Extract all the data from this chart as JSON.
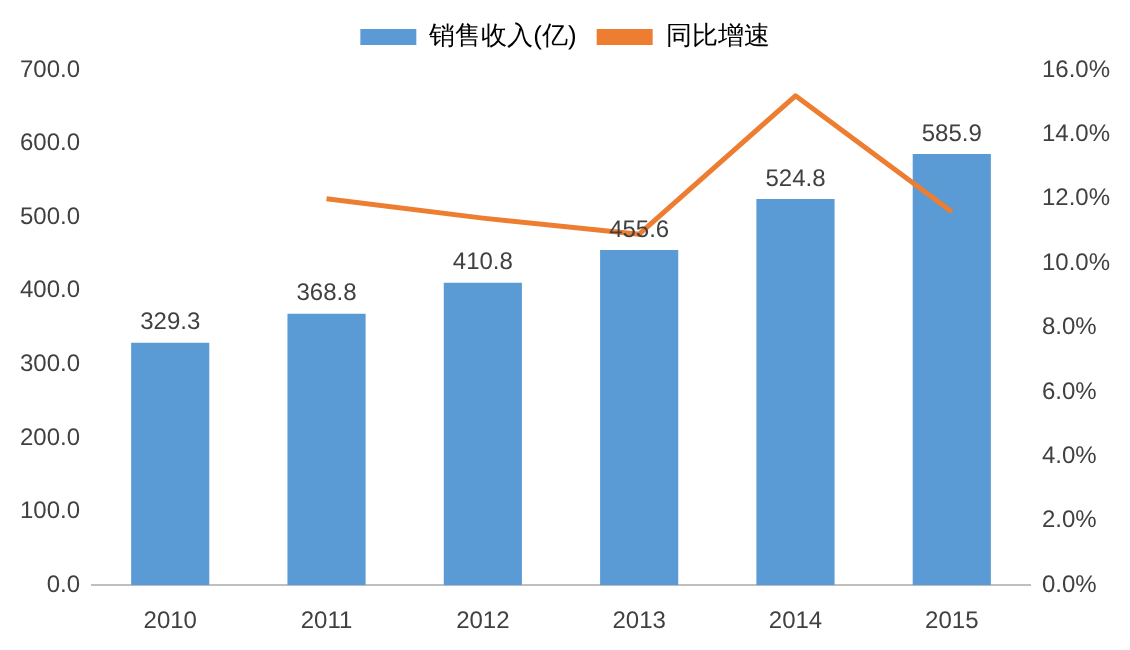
{
  "chart_data": {
    "type": "bar",
    "categories": [
      "2010",
      "2011",
      "2012",
      "2013",
      "2014",
      "2015"
    ],
    "series": [
      {
        "name": "销售收入(亿)",
        "color": "#5b9bd5",
        "values": [
          329.3,
          368.8,
          410.8,
          455.6,
          524.8,
          585.9
        ],
        "value_labels": [
          "329.3",
          "368.8",
          "410.8",
          "455.6",
          "524.8",
          "585.9"
        ]
      },
      {
        "name": "同比增速",
        "type": "line",
        "axis": "y2",
        "color": "#ed7d31",
        "values": [
          null,
          12.0,
          11.4,
          10.9,
          15.2,
          11.6
        ]
      }
    ],
    "ylim": [
      0,
      700
    ],
    "yticks": [
      {
        "value": 0,
        "label": "0.0"
      },
      {
        "value": 100,
        "label": "100.0"
      },
      {
        "value": 200,
        "label": "200.0"
      },
      {
        "value": 300,
        "label": "300.0"
      },
      {
        "value": 400,
        "label": "400.0"
      },
      {
        "value": 500,
        "label": "500.0"
      },
      {
        "value": 600,
        "label": "600.0"
      },
      {
        "value": 700,
        "label": "700.0"
      }
    ],
    "y2lim": [
      0,
      16
    ],
    "y2ticks": [
      {
        "value": 0,
        "label": "0.0%"
      },
      {
        "value": 2,
        "label": "2.0%"
      },
      {
        "value": 4,
        "label": "4.0%"
      },
      {
        "value": 6,
        "label": "6.0%"
      },
      {
        "value": 8,
        "label": "8.0%"
      },
      {
        "value": 10,
        "label": "10.0%"
      },
      {
        "value": 12,
        "label": "12.0%"
      },
      {
        "value": 14,
        "label": "14.0%"
      },
      {
        "value": 16,
        "label": "16.0%"
      }
    ],
    "legend": "top",
    "grid": false,
    "marker": "none"
  }
}
